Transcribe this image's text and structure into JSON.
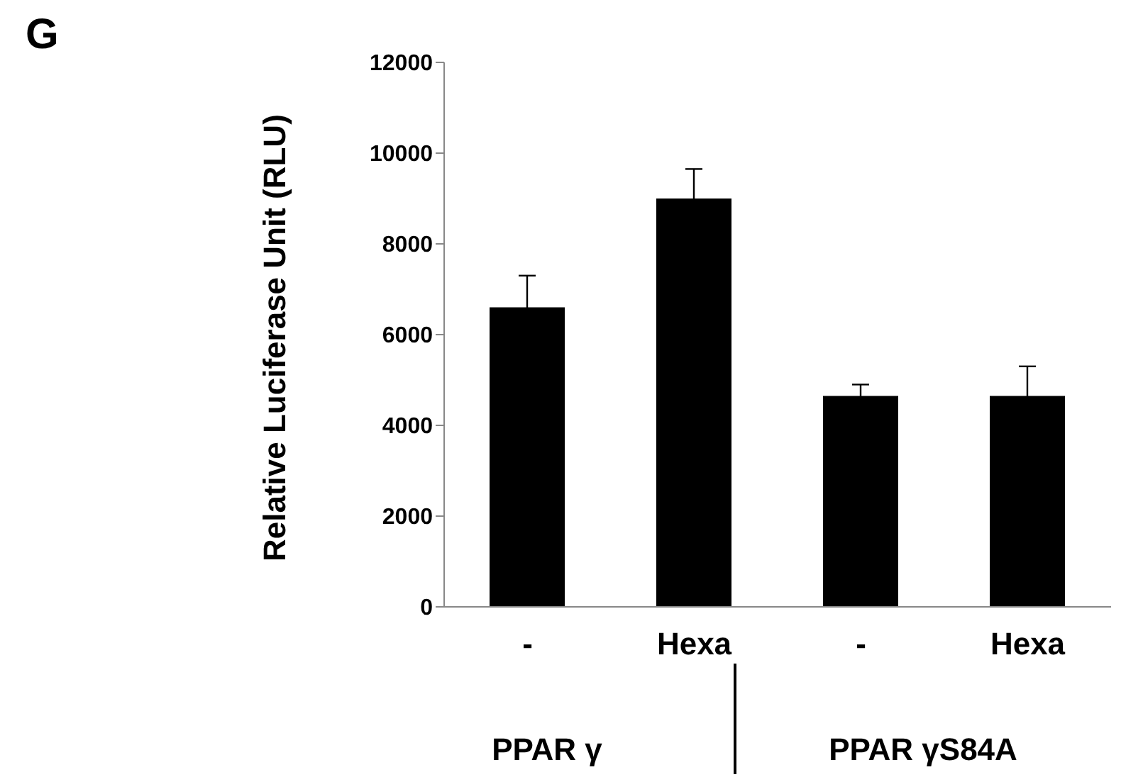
{
  "chart_data": {
    "type": "bar",
    "title": "G",
    "ylabel": "Relative Luciferase Unit  (RLU)",
    "categories": [
      "-",
      "Hexa",
      "-",
      "Hexa"
    ],
    "values": [
      6600,
      9000,
      4650,
      4650
    ],
    "errors": [
      700,
      650,
      250,
      650
    ],
    "color": "#000000",
    "ylim": [
      0,
      12000
    ],
    "yticks": [
      0,
      2000,
      4000,
      6000,
      8000,
      10000,
      12000
    ],
    "annotations": [
      "PPAR γ",
      "PPAR γS84A"
    ],
    "grid": false,
    "legend": false
  }
}
